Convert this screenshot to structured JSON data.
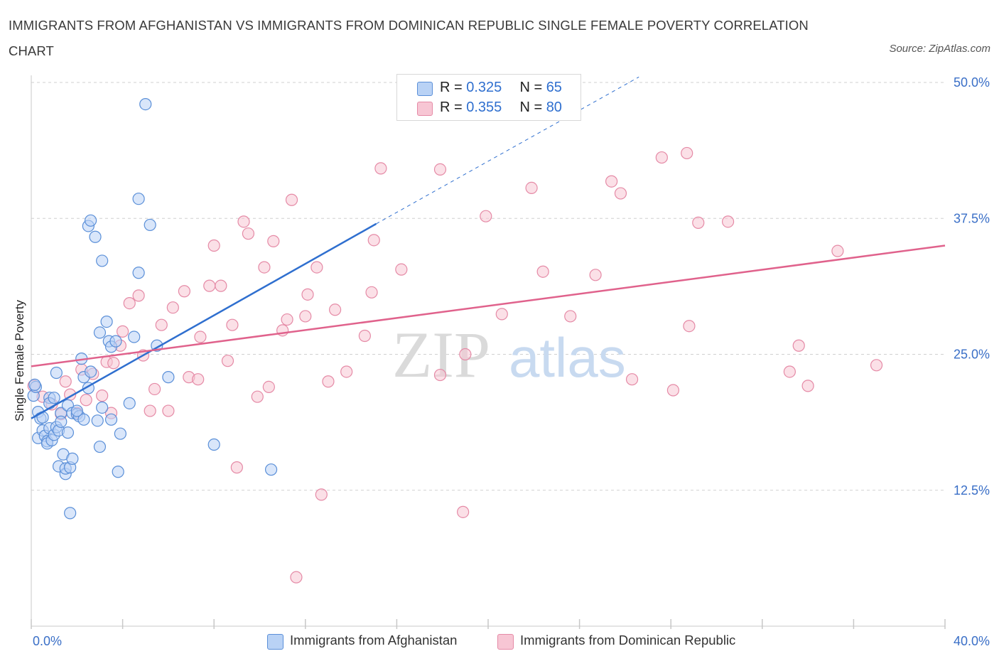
{
  "title": "IMMIGRANTS FROM AFGHANISTAN VS IMMIGRANTS FROM DOMINICAN REPUBLIC SINGLE FEMALE POVERTY CORRELATION CHART",
  "source": "Source: ZipAtlas.com",
  "watermark": {
    "zip": "ZIP",
    "atlas": "atlas"
  },
  "legend_top": {
    "rows": [
      {
        "r_label": "R = ",
        "r_value": "0.325",
        "n_label": "N = ",
        "n_value": "65"
      },
      {
        "r_label": "R = ",
        "r_value": "0.355",
        "n_label": "N = ",
        "n_value": "80"
      }
    ]
  },
  "colors": {
    "afghanistan_fill": "#b9d2f5",
    "afghanistan_stroke": "#5a8fd8",
    "afghanistan_line": "#2f6fcf",
    "dominican_fill": "#f7c6d4",
    "dominican_stroke": "#e58aa6",
    "dominican_line": "#e0628c",
    "tick_label": "#3a6fc7",
    "grid": "#d0d0d0"
  },
  "chart_data": {
    "type": "scatter",
    "title": "IMMIGRANTS FROM AFGHANISTAN VS IMMIGRANTS FROM DOMINICAN REPUBLIC SINGLE FEMALE POVERTY CORRELATION CHART",
    "xlabel": "",
    "ylabel": "Single Female Poverty",
    "xlim": [
      0,
      40
    ],
    "ylim": [
      0,
      50
    ],
    "x_tick_labels": [
      "0.0%",
      "40.0%"
    ],
    "y_ticks": [
      12.5,
      25.0,
      37.5,
      50.0
    ],
    "y_tick_labels": [
      "12.5%",
      "25.0%",
      "37.5%",
      "50.0%"
    ],
    "grid": true,
    "legend_placement": "bottom-center",
    "series": [
      {
        "name": "Immigrants from Afghanistan",
        "R": 0.325,
        "N": 65,
        "trend": {
          "x0": 0.0,
          "y0": 19.1,
          "x1": 15.1,
          "y1": 37.0,
          "dash_to_x": 26.6,
          "dash_to_y": 50.5
        },
        "points": [
          [
            0.1,
            21.2
          ],
          [
            0.2,
            22.0
          ],
          [
            0.3,
            17.3
          ],
          [
            0.3,
            19.7
          ],
          [
            0.4,
            19.1
          ],
          [
            0.5,
            18.0
          ],
          [
            0.6,
            17.5
          ],
          [
            0.7,
            17.0
          ],
          [
            0.7,
            16.8
          ],
          [
            0.8,
            18.2
          ],
          [
            0.8,
            21.0
          ],
          [
            0.8,
            20.5
          ],
          [
            0.9,
            17.1
          ],
          [
            1.0,
            17.6
          ],
          [
            1.1,
            23.3
          ],
          [
            1.1,
            18.3
          ],
          [
            1.2,
            18.0
          ],
          [
            1.2,
            14.7
          ],
          [
            1.3,
            19.6
          ],
          [
            1.3,
            18.8
          ],
          [
            1.4,
            15.8
          ],
          [
            1.5,
            14.0
          ],
          [
            1.5,
            14.5
          ],
          [
            1.6,
            17.8
          ],
          [
            1.6,
            20.3
          ],
          [
            1.7,
            10.4
          ],
          [
            1.7,
            14.6
          ],
          [
            1.8,
            15.4
          ],
          [
            1.8,
            19.6
          ],
          [
            2.0,
            19.5
          ],
          [
            2.1,
            19.3
          ],
          [
            2.2,
            24.6
          ],
          [
            2.3,
            22.9
          ],
          [
            2.3,
            19.0
          ],
          [
            2.5,
            21.9
          ],
          [
            2.6,
            23.4
          ],
          [
            2.5,
            36.8
          ],
          [
            2.6,
            37.3
          ],
          [
            2.8,
            35.8
          ],
          [
            2.9,
            18.9
          ],
          [
            3.0,
            27.0
          ],
          [
            3.0,
            16.5
          ],
          [
            3.1,
            20.1
          ],
          [
            3.1,
            33.6
          ],
          [
            3.3,
            28.0
          ],
          [
            3.4,
            26.2
          ],
          [
            3.5,
            25.7
          ],
          [
            3.5,
            19.0
          ],
          [
            3.7,
            26.2
          ],
          [
            3.8,
            14.2
          ],
          [
            3.9,
            17.7
          ],
          [
            4.3,
            20.5
          ],
          [
            4.5,
            26.6
          ],
          [
            4.7,
            32.5
          ],
          [
            4.7,
            39.3
          ],
          [
            5.0,
            48.0
          ],
          [
            5.2,
            36.9
          ],
          [
            5.5,
            25.8
          ],
          [
            6.0,
            22.9
          ],
          [
            8.0,
            16.7
          ],
          [
            10.5,
            14.4
          ],
          [
            0.15,
            22.2
          ],
          [
            0.5,
            19.2
          ],
          [
            2.0,
            19.8
          ],
          [
            1.0,
            21.0
          ]
        ]
      },
      {
        "name": "Immigrants from Dominican Republic",
        "R": 0.355,
        "N": 80,
        "trend": {
          "x0": 0.0,
          "y0": 23.9,
          "x1": 40.0,
          "y1": 35.0
        },
        "points": [
          [
            0.1,
            22.1
          ],
          [
            0.5,
            21.1
          ],
          [
            0.9,
            20.4
          ],
          [
            1.3,
            19.5
          ],
          [
            1.5,
            22.5
          ],
          [
            1.7,
            21.3
          ],
          [
            2.0,
            19.6
          ],
          [
            2.2,
            23.6
          ],
          [
            2.4,
            20.8
          ],
          [
            2.7,
            23.2
          ],
          [
            3.1,
            21.2
          ],
          [
            3.3,
            24.3
          ],
          [
            3.5,
            19.6
          ],
          [
            3.6,
            24.2
          ],
          [
            3.9,
            25.8
          ],
          [
            4.0,
            27.1
          ],
          [
            4.3,
            29.7
          ],
          [
            4.7,
            30.4
          ],
          [
            4.9,
            24.9
          ],
          [
            5.2,
            19.8
          ],
          [
            5.4,
            21.8
          ],
          [
            5.7,
            27.7
          ],
          [
            6.0,
            19.8
          ],
          [
            6.2,
            29.3
          ],
          [
            6.7,
            30.8
          ],
          [
            6.9,
            22.9
          ],
          [
            7.3,
            22.7
          ],
          [
            7.4,
            26.6
          ],
          [
            7.8,
            31.3
          ],
          [
            8.0,
            35.0
          ],
          [
            8.3,
            31.3
          ],
          [
            8.6,
            24.4
          ],
          [
            8.8,
            27.7
          ],
          [
            9.0,
            14.6
          ],
          [
            9.3,
            37.2
          ],
          [
            9.5,
            36.1
          ],
          [
            9.9,
            21.1
          ],
          [
            10.2,
            33.0
          ],
          [
            10.4,
            22.0
          ],
          [
            10.6,
            35.4
          ],
          [
            11.0,
            27.2
          ],
          [
            11.2,
            28.2
          ],
          [
            11.4,
            39.2
          ],
          [
            11.6,
            4.5
          ],
          [
            12.0,
            28.5
          ],
          [
            12.1,
            30.5
          ],
          [
            12.5,
            33.0
          ],
          [
            12.7,
            12.1
          ],
          [
            13.0,
            22.5
          ],
          [
            13.3,
            29.1
          ],
          [
            13.8,
            23.4
          ],
          [
            14.6,
            26.7
          ],
          [
            14.9,
            30.7
          ],
          [
            15.0,
            35.5
          ],
          [
            15.3,
            42.1
          ],
          [
            16.2,
            32.8
          ],
          [
            17.9,
            42.0
          ],
          [
            17.9,
            23.1
          ],
          [
            18.9,
            10.5
          ],
          [
            19.0,
            25.0
          ],
          [
            19.9,
            37.7
          ],
          [
            20.6,
            28.7
          ],
          [
            21.9,
            40.3
          ],
          [
            22.4,
            32.6
          ],
          [
            23.6,
            28.5
          ],
          [
            24.7,
            32.3
          ],
          [
            25.4,
            40.9
          ],
          [
            25.8,
            39.8
          ],
          [
            26.3,
            22.7
          ],
          [
            27.6,
            43.1
          ],
          [
            28.1,
            21.7
          ],
          [
            28.7,
            43.5
          ],
          [
            28.8,
            27.6
          ],
          [
            29.2,
            37.1
          ],
          [
            30.5,
            37.2
          ],
          [
            33.2,
            23.4
          ],
          [
            33.6,
            25.8
          ],
          [
            34.0,
            22.1
          ],
          [
            35.3,
            34.5
          ],
          [
            37.0,
            24.0
          ]
        ]
      }
    ]
  },
  "bottom_legend": {
    "items": [
      {
        "label": "Immigrants from Afghanistan"
      },
      {
        "label": "Immigrants from Dominican Republic"
      }
    ]
  }
}
